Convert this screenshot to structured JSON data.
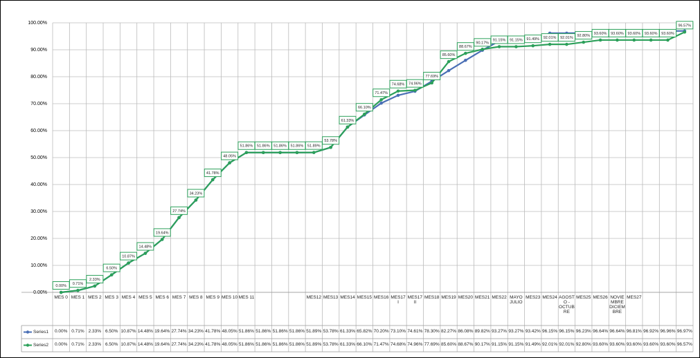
{
  "chart_data": {
    "type": "line",
    "categories": [
      "MES 0",
      "MES 1",
      "MES 2",
      "MES 3",
      "MES 4",
      "MES 5",
      "MES 6",
      "MES 7",
      "MES 8",
      "MES 9",
      "MES 10",
      "MES 11",
      null,
      null,
      null,
      "MES12",
      "MES13",
      "MES14",
      "MES15",
      "MES16",
      "MES17 I",
      "MES17 II",
      "MES18",
      "MES19",
      "MES20",
      "MES21",
      "MES22",
      "MAYO JULIO",
      "MES23",
      "MES24",
      "AGOSTO - OCTUBRE",
      "MES25",
      "MES26",
      "NOVIEMBRE DICIEMBRE",
      "MES27",
      null,
      null,
      null
    ],
    "series": [
      {
        "name": "Series1",
        "color": "#4a6fb5",
        "values": [
          0,
          0.71,
          2.33,
          6.5,
          10.87,
          14.48,
          19.64,
          27.74,
          34.23,
          41.78,
          48.05,
          51.86,
          51.86,
          51.86,
          51.86,
          51.89,
          53.78,
          61.33,
          65.82,
          70.2,
          73.1,
          74.61,
          78.3,
          82.27,
          86.08,
          89.82,
          93.27,
          93.27,
          93.42,
          96.15,
          96.15,
          96.23,
          96.64,
          96.64,
          96.81,
          96.92,
          96.96,
          96.97
        ],
        "value_labels": [
          "0.00%",
          "0.71%",
          "2.33%",
          "6.50%",
          "10.87%",
          "14.48%",
          "19.64%",
          "27.74%",
          "34.23%",
          "41.78%",
          "48.05%",
          "51.86%",
          "51.86%",
          "51.86%",
          "51.86%",
          "51.89%",
          "53.78%",
          "61.33%",
          "65.82%",
          "70.20%",
          "73.10%",
          "74.61%",
          "78.30%",
          "82.27%",
          "86.08%",
          "89.82%",
          "93.27%",
          "93.27%",
          "93.42%",
          "96.15%",
          "96.15%",
          "96.23%",
          "96.64%",
          "96.64%",
          "96.81%",
          "96.92%",
          "96.96%",
          "96.97%"
        ]
      },
      {
        "name": "Series2",
        "color": "#2ca05a",
        "values": [
          0,
          0.71,
          2.33,
          6.5,
          10.87,
          14.48,
          19.64,
          27.74,
          34.23,
          41.78,
          48.05,
          51.86,
          51.86,
          51.86,
          51.86,
          51.89,
          53.78,
          61.33,
          66.1,
          71.47,
          74.68,
          74.96,
          77.69,
          85.6,
          88.67,
          90.17,
          91.15,
          91.15,
          91.49,
          92.01,
          92.01,
          92.8,
          93.6,
          93.6,
          93.6,
          93.6,
          93.6,
          96.57
        ],
        "value_labels": [
          "0.00%",
          "0.71%",
          "2.33%",
          "6.50%",
          "10.87%",
          "14.48%",
          "19.64%",
          "27.74%",
          "34.23%",
          "41.78%",
          "48.05%",
          "51.86%",
          "51.86%",
          "51.86%",
          "51.86%",
          "51.89%",
          "53.78%",
          "61.33%",
          "66.10%",
          "71.47%",
          "74.68%",
          "74.96%",
          "77.69%",
          "85.60%",
          "88.67%",
          "90.17%",
          "91.15%",
          "91.15%",
          "91.49%",
          "92.01%",
          "92.01%",
          "92.80%",
          "93.60%",
          "93.60%",
          "93.60%",
          "93.60%",
          "93.60%",
          "96.57%"
        ]
      }
    ],
    "ylim": [
      0,
      100
    ],
    "yticks": [
      {
        "value": 0,
        "label": "0.00%"
      },
      {
        "value": 10,
        "label": "10.00%"
      },
      {
        "value": 20,
        "label": "20.00%"
      },
      {
        "value": 30,
        "label": "30.00%"
      },
      {
        "value": 40,
        "label": "40.00%"
      },
      {
        "value": 50,
        "label": "50.00%"
      },
      {
        "value": 60,
        "label": "60.00%"
      },
      {
        "value": 70,
        "label": "70.00%"
      },
      {
        "value": 80,
        "label": "80.00%"
      },
      {
        "value": 90,
        "label": "90.00%"
      },
      {
        "value": 100,
        "label": "100.00%"
      }
    ],
    "grid": true,
    "labeled_series": 1
  }
}
